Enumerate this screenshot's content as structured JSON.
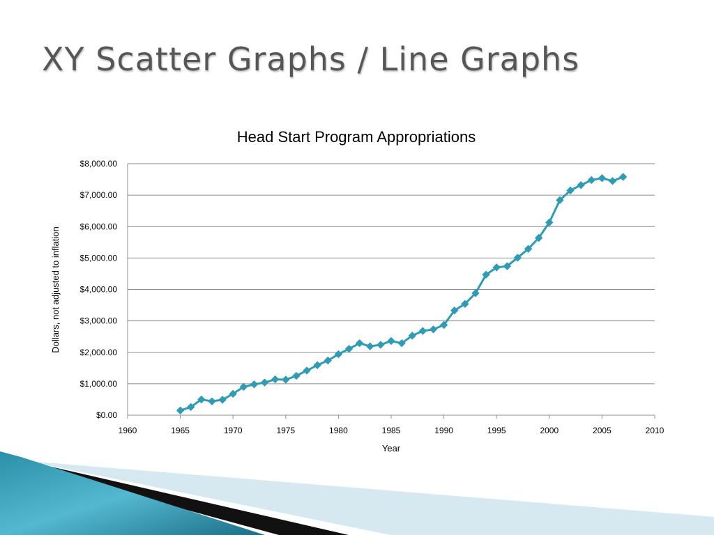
{
  "slide": {
    "title": "XY Scatter Graphs / Line Graphs"
  },
  "colors": {
    "series": "#2f9bb4",
    "title_text": "#565656",
    "grid": "#8c8c8c",
    "decor_teal": "#1d7f97",
    "decor_light": "#cfe6ef"
  },
  "chart_data": {
    "type": "line",
    "title": "Head Start Program Appropriations",
    "xlabel": "Year",
    "ylabel": "Dollars, not adjusted to inflation",
    "xlim": [
      1960,
      2010
    ],
    "ylim": [
      0,
      8000
    ],
    "x_ticks": [
      "1960",
      "1965",
      "1970",
      "1975",
      "1980",
      "1985",
      "1990",
      "1995",
      "2000",
      "2005",
      "2010"
    ],
    "y_ticks": [
      "$0.00",
      "$1,000.00",
      "$2,000.00",
      "$3,000.00",
      "$4,000.00",
      "$5,000.00",
      "$6,000.00",
      "$7,000.00",
      "$8,000.00"
    ],
    "grid": "horizontal",
    "legend": "none",
    "marker": "diamond",
    "series": [
      {
        "x": [
          1965,
          1966,
          1967,
          1968,
          1969,
          1970,
          1971,
          1972,
          1973,
          1974,
          1975,
          1976,
          1977,
          1978,
          1979,
          1980,
          1981,
          1982,
          1983,
          1984,
          1985,
          1986,
          1987,
          1988,
          1989,
          1990,
          1991,
          1992,
          1993,
          1994,
          1995,
          1996,
          1997,
          1998,
          1999,
          2000,
          2001,
          2002,
          2003,
          2004,
          2005,
          2006,
          2007
        ],
        "y": [
          150,
          260,
          500,
          440,
          490,
          680,
          900,
          980,
          1040,
          1140,
          1130,
          1250,
          1420,
          1590,
          1740,
          1940,
          2110,
          2290,
          2190,
          2240,
          2360,
          2290,
          2530,
          2680,
          2730,
          2870,
          3330,
          3540,
          3880,
          4470,
          4700,
          4740,
          5010,
          5290,
          5640,
          6130,
          6840,
          7150,
          7320,
          7480,
          7540,
          7450,
          7580
        ]
      }
    ]
  }
}
